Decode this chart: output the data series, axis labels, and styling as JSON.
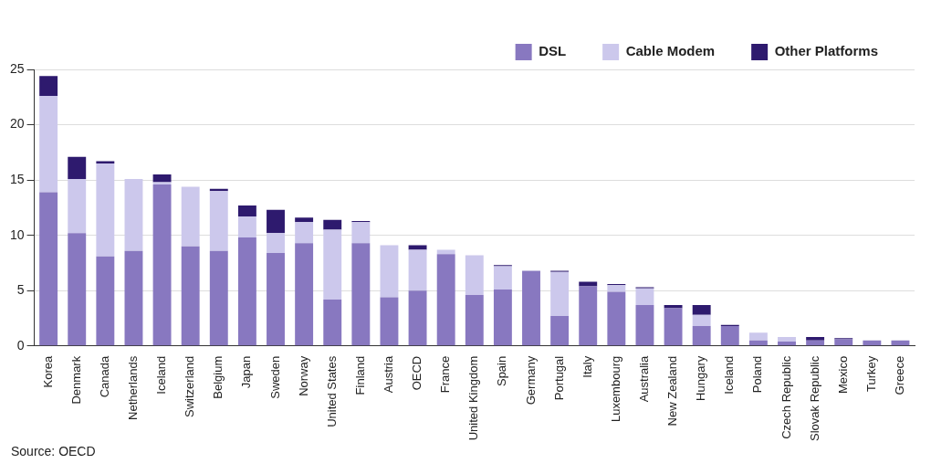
{
  "chart_data": {
    "type": "bar",
    "stacked": true,
    "categories": [
      "Korea",
      "Denmark",
      "Canada",
      "Netherlands",
      "Iceland",
      "Switzerland",
      "Belgium",
      "Japan",
      "Sweden",
      "Norway",
      "United States",
      "Finland",
      "Austria",
      "OECD",
      "France",
      "United Kingdom",
      "Spain",
      "Germany",
      "Portugal",
      "Italy",
      "Luxembourg",
      "Australia",
      "New Zealand",
      "Hungary",
      "Iceland",
      "Poland",
      "Czech Republic",
      "Slovak Republic",
      "Mexico",
      "Turkey",
      "Greece"
    ],
    "series": [
      {
        "name": "DSL",
        "color": "#8878c0",
        "values": [
          13.9,
          10.2,
          8.1,
          8.6,
          14.6,
          9.0,
          8.6,
          9.8,
          8.4,
          9.3,
          4.2,
          9.3,
          4.4,
          5.0,
          8.3,
          4.6,
          5.1,
          6.8,
          2.7,
          5.4,
          4.9,
          3.7,
          3.4,
          1.8,
          1.8,
          0.5,
          0.4,
          0.5,
          0.6,
          0.5,
          0.5
        ]
      },
      {
        "name": "Cable Modem",
        "color": "#ccc8ec",
        "values": [
          8.7,
          4.9,
          8.4,
          6.5,
          0.2,
          5.4,
          5.4,
          1.9,
          1.8,
          1.9,
          6.3,
          1.9,
          4.7,
          3.7,
          0.4,
          3.6,
          2.1,
          null,
          4.0,
          0,
          0.6,
          1.5,
          null,
          1.0,
          0,
          0.7,
          0.4,
          0,
          0,
          0,
          0
        ]
      },
      {
        "name": "Other Platforms",
        "color": "#2e1a6e",
        "values": [
          1.8,
          2.0,
          0.2,
          0,
          0.7,
          0,
          0.2,
          1.0,
          2.1,
          0.4,
          0.9,
          0.1,
          0,
          0.4,
          0,
          0,
          0.1,
          0,
          0.1,
          0.4,
          0.1,
          0.1,
          0.3,
          0.9,
          0.1,
          0,
          0,
          0.3,
          0.1,
          0,
          0
        ]
      }
    ],
    "ylim": [
      0,
      25
    ],
    "yticks": [
      0,
      5,
      10,
      15,
      20,
      25
    ],
    "grid": "y",
    "legend": "top right",
    "annotations": [
      "Source: OECD"
    ]
  }
}
